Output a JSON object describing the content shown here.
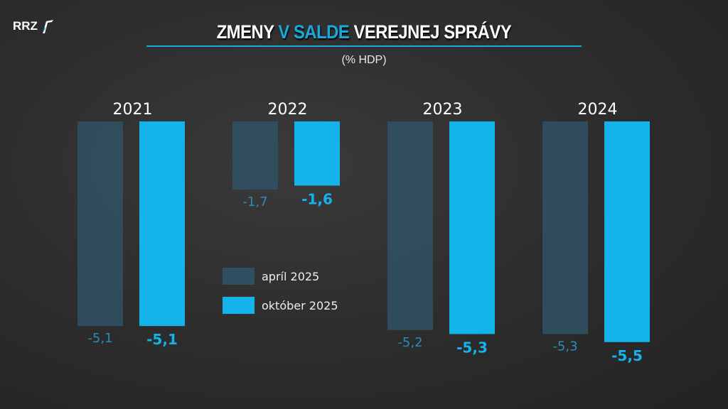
{
  "logo": {
    "text": "RRZ"
  },
  "header": {
    "title_part1": "ZMENY ",
    "title_highlight": "V SALDE",
    "title_part2": " VEREJNEJ SPRÁVY",
    "subtitle": "(% HDP)"
  },
  "chart_data": {
    "type": "bar",
    "title": "ZMENY V SALDE VEREJNEJ SPRÁVY",
    "subtitle": "(% HDP)",
    "categories": [
      "2021",
      "2022",
      "2023",
      "2024"
    ],
    "series": [
      {
        "name": "apríl 2025",
        "color": "#2f5062",
        "values": [
          -5.1,
          -1.7,
          -5.2,
          -5.3
        ],
        "labels": [
          "-5,1",
          "-1,7",
          "-5,2",
          "-5,3"
        ]
      },
      {
        "name": "október 2025",
        "color": "#14b4ea",
        "values": [
          -5.1,
          -1.6,
          -5.3,
          -5.5
        ],
        "labels": [
          "-5,1",
          "-1,6",
          "-5,3",
          "-5,5"
        ]
      }
    ],
    "ylim": [
      -5.5,
      0
    ],
    "grid": false,
    "legend": "center"
  }
}
